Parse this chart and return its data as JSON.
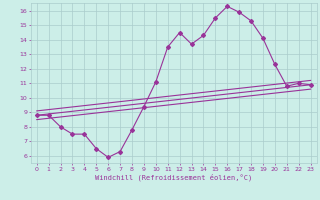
{
  "title": "",
  "xlabel": "Windchill (Refroidissement éolien,°C)",
  "ylabel": "",
  "bg_color": "#cceee8",
  "grid_color": "#aacccc",
  "line_color": "#993399",
  "xlim": [
    -0.5,
    23.5
  ],
  "ylim": [
    5.5,
    16.5
  ],
  "xticks": [
    0,
    1,
    2,
    3,
    4,
    5,
    6,
    7,
    8,
    9,
    10,
    11,
    12,
    13,
    14,
    15,
    16,
    17,
    18,
    19,
    20,
    21,
    22,
    23
  ],
  "yticks": [
    6,
    7,
    8,
    9,
    10,
    11,
    12,
    13,
    14,
    15,
    16
  ],
  "line1_x": [
    0,
    1,
    2,
    3,
    4,
    5,
    6,
    7,
    8,
    9,
    10,
    11,
    12,
    13,
    14,
    15,
    16,
    17,
    18,
    19,
    20,
    21,
    22,
    23
  ],
  "line1_y": [
    8.8,
    8.8,
    8.0,
    7.5,
    7.5,
    6.5,
    5.9,
    6.3,
    7.8,
    9.4,
    11.1,
    13.5,
    14.5,
    13.7,
    14.3,
    15.5,
    16.3,
    15.9,
    15.3,
    14.1,
    12.3,
    10.8,
    11.0,
    10.9
  ],
  "line2_x": [
    0,
    23
  ],
  "line2_y": [
    8.8,
    10.9
  ],
  "line3_x": [
    0,
    23
  ],
  "line3_y": [
    8.5,
    10.6
  ],
  "line4_x": [
    0,
    23
  ],
  "line4_y": [
    9.1,
    11.2
  ],
  "marker": "D",
  "markersize": 2,
  "linewidth": 0.8,
  "tick_fontsize": 4.5,
  "xlabel_fontsize": 5.0
}
